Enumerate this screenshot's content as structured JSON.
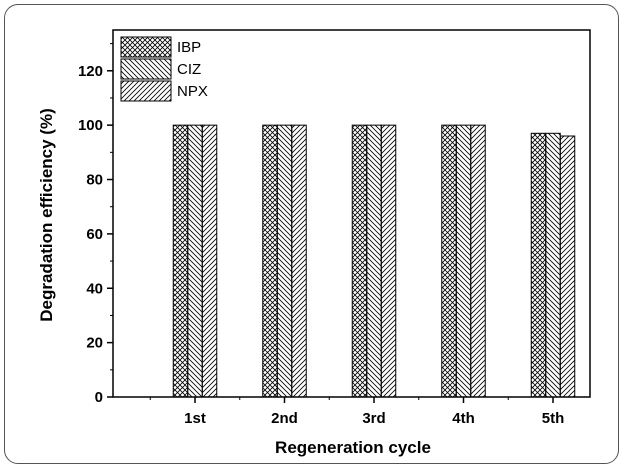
{
  "chart_data": {
    "type": "bar",
    "title": "",
    "xlabel": "Regeneration cycle",
    "ylabel": "Degradation efficiency (%)",
    "categories": [
      "1st",
      "2nd",
      "3rd",
      "4th",
      "5th"
    ],
    "ylim": [
      0,
      135
    ],
    "yticks": [
      0,
      20,
      40,
      60,
      80,
      100,
      120
    ],
    "grid": false,
    "legend_position": "top-left",
    "series": [
      {
        "name": "IBP",
        "pattern": "crosshatch",
        "values": [
          100,
          100,
          100,
          100,
          97
        ]
      },
      {
        "name": "CIZ",
        "pattern": "back-diagonal",
        "values": [
          100,
          100,
          100,
          100,
          97
        ]
      },
      {
        "name": "NPX",
        "pattern": "forward-diagonal",
        "values": [
          100,
          100,
          100,
          100,
          96
        ]
      }
    ],
    "colors": {
      "axis": "#000000",
      "bar_fill": "#ffffff",
      "hatch": "#000000"
    }
  }
}
